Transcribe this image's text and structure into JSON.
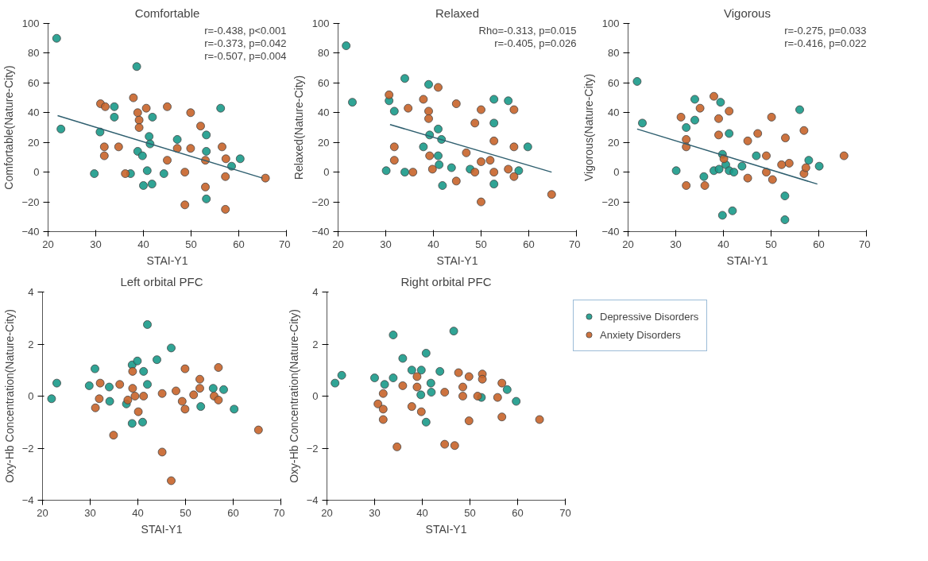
{
  "chart_data": [
    {
      "type": "scatter",
      "title": "Comfortable",
      "xlabel": "STAI-Y1",
      "ylabel": "Comfortable(Nature-City)",
      "xlim": [
        20,
        70
      ],
      "xticks": [
        20,
        30,
        40,
        50,
        60,
        70
      ],
      "ylim": [
        -40,
        100
      ],
      "yticks": [
        -40,
        -20,
        0,
        20,
        40,
        60,
        80,
        100
      ],
      "grid": false,
      "legend": false,
      "marker": "circle",
      "annotations": [
        "r=-0.438, p<0.001",
        "r=-0.373, p=0.042",
        "r=-0.507, p=0.004"
      ],
      "series": [
        {
          "color": "#1a9a8a",
          "x": [
            21.8,
            22.7,
            29.7,
            30.9,
            33.9,
            33.9,
            38.6,
            37.3,
            38.8,
            39.8,
            40,
            41.8,
            40.8,
            41.2,
            41.9,
            41.4,
            44.3,
            47.1,
            53.2,
            53.2,
            53.2,
            56.2,
            58.5,
            60.3
          ],
          "values": [
            90,
            29,
            -1,
            27,
            44,
            37,
            71,
            -1,
            14,
            11,
            -9,
            -8,
            1,
            24,
            37,
            19,
            -1,
            22,
            14,
            25,
            -18,
            43,
            4,
            9
          ]
        },
        {
          "color": "#c8642a",
          "x": [
            31,
            32,
            31.8,
            31.8,
            34.8,
            36.2,
            37.9,
            38.8,
            39.1,
            39.1,
            40.6,
            45,
            47.1,
            45,
            48.7,
            49.9,
            49.9,
            52,
            53,
            53,
            48.7,
            56.5,
            57.3,
            57.2,
            57.2,
            65.6
          ],
          "values": [
            46,
            44,
            17,
            11,
            17,
            -1,
            50,
            40,
            35,
            30,
            43,
            44,
            16,
            8,
            0,
            40,
            16,
            31,
            8,
            -10,
            -22,
            17,
            9,
            -3,
            -25,
            -4
          ]
        },
        {
          "type": "line",
          "marker": "none",
          "color": "#2f5f6f",
          "x": [
            22,
            65
          ],
          "values": [
            38,
            -4
          ]
        }
      ]
    },
    {
      "type": "scatter",
      "title": "Relaxed",
      "xlabel": "STAI-Y1",
      "ylabel": "Relaxed(Nature-City)",
      "xlim": [
        20,
        70
      ],
      "xticks": [
        20,
        30,
        40,
        50,
        60,
        70
      ],
      "ylim": [
        -40,
        100
      ],
      "yticks": [
        -40,
        -20,
        0,
        20,
        40,
        60,
        80,
        100
      ],
      "grid": false,
      "legend": false,
      "marker": "circle",
      "annotations": [
        "Rho=-0.313, p=0.015",
        "r=-0.405, p=0.026"
      ],
      "series": [
        {
          "color": "#1a9a8a",
          "x": [
            21.7,
            23,
            30.1,
            30.7,
            31.8,
            34,
            34,
            39,
            37.9,
            39.2,
            41,
            41,
            41.2,
            41.9,
            43.8,
            41.7,
            47.7,
            52.7,
            52.7,
            52.7,
            55.7,
            57.9,
            59.8
          ],
          "values": [
            85,
            47,
            1,
            48,
            41,
            63,
            0,
            59,
            17,
            25,
            29,
            11,
            5,
            -9,
            3,
            22,
            2,
            49,
            33,
            -8,
            48,
            1,
            17
          ]
        },
        {
          "color": "#c8642a",
          "x": [
            30.7,
            31.8,
            31.8,
            34.7,
            35.7,
            37.9,
            39,
            39,
            39.2,
            39.8,
            41,
            44.8,
            44.8,
            46.9,
            48.7,
            48.7,
            50,
            50,
            50,
            51.9,
            52.7,
            52.7,
            55.7,
            56.9,
            56.9,
            56.9,
            64.8
          ],
          "values": [
            52,
            17,
            8,
            43,
            0,
            49,
            41,
            36,
            11,
            2,
            57,
            46,
            -6,
            13,
            0,
            33,
            42,
            7,
            -20,
            8,
            21,
            0,
            2,
            17,
            -3,
            42,
            -15
          ]
        },
        {
          "type": "line",
          "marker": "none",
          "color": "#2f5f6f",
          "x": [
            30.9,
            64.8
          ],
          "values": [
            32,
            0
          ]
        }
      ]
    },
    {
      "type": "scatter",
      "title": "Vigorous",
      "xlabel": "STAI-Y1",
      "ylabel": "Vigorous(Nature-City)",
      "xlim": [
        20,
        70
      ],
      "xticks": [
        20,
        30,
        40,
        50,
        60,
        70
      ],
      "ylim": [
        -40,
        100
      ],
      "yticks": [
        -40,
        -20,
        0,
        20,
        40,
        60,
        80,
        100
      ],
      "grid": false,
      "legend": false,
      "marker": "circle",
      "annotations": [
        "r=-0.275, p=0.033",
        "r=-0.416, p=0.022"
      ],
      "series": [
        {
          "color": "#1a9a8a",
          "x": [
            21.9,
            23,
            30.1,
            32.2,
            34,
            34,
            35.9,
            38,
            39.1,
            39.4,
            39.8,
            40.5,
            41.2,
            41.2,
            42.2,
            39.8,
            41.9,
            43.9,
            46.9,
            52.9,
            52.9,
            56,
            57.9,
            60.1
          ],
          "values": [
            61,
            33,
            1,
            30,
            49,
            35,
            -3,
            1,
            2,
            47,
            12,
            5,
            26,
            1,
            0,
            -29,
            -26,
            4,
            11,
            -16,
            -32,
            42,
            8,
            4
          ]
        },
        {
          "color": "#c8642a",
          "x": [
            31.1,
            32.2,
            32.2,
            32.2,
            35.1,
            36.1,
            38,
            39,
            39,
            40.1,
            41.2,
            45.1,
            45.1,
            47.2,
            49,
            49,
            50.1,
            50.3,
            53,
            52.2,
            53.8,
            56.9,
            56.9,
            57.3,
            65.3
          ],
          "values": [
            37,
            22,
            17,
            -9,
            43,
            -9,
            51,
            36,
            25,
            9,
            41,
            21,
            -4,
            26,
            11,
            0,
            37,
            -5,
            23,
            5,
            6,
            28,
            -1,
            3,
            11
          ]
        },
        {
          "type": "line",
          "marker": "none",
          "color": "#2f5f6f",
          "x": [
            21.9,
            59.7
          ],
          "values": [
            29,
            -8
          ]
        }
      ]
    },
    {
      "type": "scatter",
      "title": "Left orbital PFC",
      "xlabel": "STAI-Y1",
      "ylabel": "Oxy-Hb Concentration(Nature-City)",
      "xlim": [
        20,
        70
      ],
      "xticks": [
        20,
        30,
        40,
        50,
        60,
        70
      ],
      "ylim": [
        -4,
        4
      ],
      "yticks": [
        -4,
        -2,
        0,
        2,
        4
      ],
      "grid": false,
      "legend": false,
      "marker": "circle",
      "series": [
        {
          "color": "#1a9a8a",
          "x": [
            21.9,
            23,
            29.8,
            31,
            34,
            34.1,
            37.6,
            38.8,
            38.8,
            39.9,
            41.2,
            41,
            42,
            42,
            44,
            47,
            53.2,
            55.8,
            58,
            60.2
          ],
          "values": [
            -0.1,
            0.5,
            0.4,
            1.05,
            0.35,
            -0.2,
            -0.3,
            -1.05,
            1.2,
            1.35,
            0.95,
            -1.0,
            0.45,
            2.75,
            1.4,
            1.85,
            -0.4,
            0.3,
            0.25,
            -0.5
          ]
        },
        {
          "color": "#c8642a",
          "x": [
            31.1,
            32.1,
            31.9,
            34.9,
            36.2,
            37.9,
            38.9,
            38.9,
            39.4,
            40.1,
            41.2,
            45.1,
            45.1,
            47,
            48,
            49.3,
            49.9,
            49.9,
            51.7,
            53,
            53,
            56,
            56.9,
            56.9,
            65.3
          ],
          "values": [
            -0.45,
            0.5,
            -0.1,
            -1.5,
            0.45,
            -0.15,
            0.95,
            0.3,
            0,
            -0.6,
            0,
            0.1,
            -2.15,
            -3.25,
            0.2,
            -0.2,
            1.05,
            -0.5,
            0.05,
            0.65,
            0.3,
            0,
            1.1,
            -0.15,
            -1.3
          ]
        }
      ]
    },
    {
      "type": "scatter",
      "title": "Right orbital PFC",
      "xlabel": "STAI-Y1",
      "ylabel": "Oxy-Hb Concentration(Nature-City)",
      "xlim": [
        20,
        70
      ],
      "xticks": [
        20,
        30,
        40,
        50,
        60,
        70
      ],
      "ylim": [
        -4,
        4
      ],
      "yticks": [
        -4,
        -2,
        0,
        2,
        4
      ],
      "grid": false,
      "legend": "right",
      "marker": "circle",
      "series": [
        {
          "name": "Depressive Disorders",
          "color": "#1a9a8a",
          "x": [
            21.7,
            23.1,
            30,
            32.1,
            33.9,
            33.9,
            35.9,
            37.8,
            39.8,
            40.8,
            40.8,
            41.8,
            41.9,
            43.7,
            46.6,
            39.7,
            52.4,
            57.8,
            59.7
          ],
          "values": [
            0.5,
            0.8,
            0.7,
            0.45,
            2.35,
            0.7,
            1.45,
            1.0,
            1.0,
            -1.0,
            1.65,
            0.5,
            0.15,
            0.95,
            2.5,
            0.05,
            -0.05,
            0.25,
            -0.2
          ]
        },
        {
          "name": "Anxiety Disorders",
          "color": "#c8642a",
          "x": [
            30.7,
            31.8,
            31.8,
            31.8,
            34.7,
            35.9,
            37.8,
            38.9,
            38.9,
            39.8,
            44.7,
            44.7,
            46.8,
            47.6,
            48.5,
            48.5,
            49.8,
            49.8,
            52.6,
            52.6,
            51.6,
            55.8,
            56.7,
            56.7,
            64.6
          ],
          "values": [
            -0.3,
            0.1,
            -0.5,
            -0.9,
            -1.95,
            0.4,
            -0.4,
            0.35,
            0.75,
            -0.6,
            0.15,
            -1.85,
            -1.9,
            0.9,
            0.35,
            0,
            0.75,
            -0.95,
            0.85,
            0.65,
            0,
            -0.05,
            0.5,
            -0.8,
            -0.9
          ]
        }
      ]
    }
  ]
}
